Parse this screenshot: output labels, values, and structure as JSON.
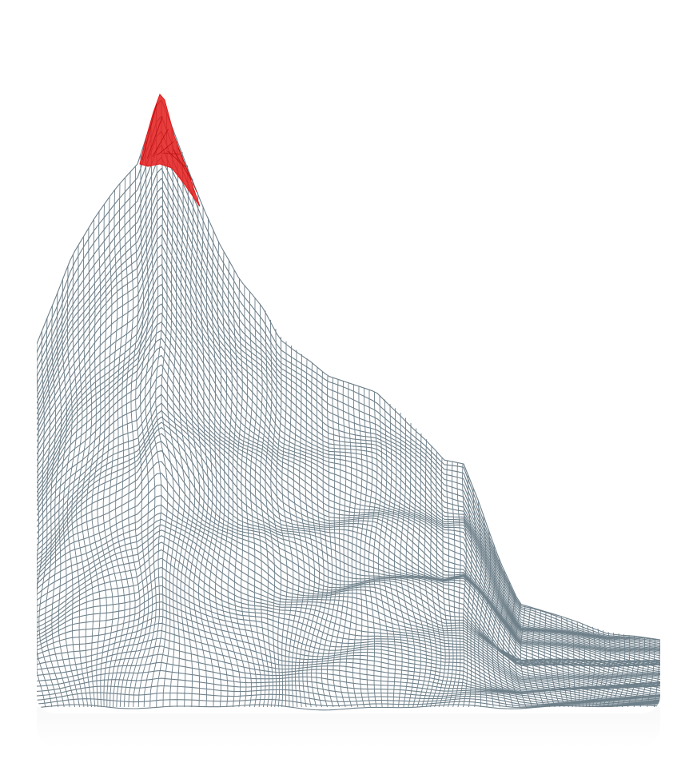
{
  "scene": {
    "subject": "terrain-wireframe",
    "colors": {
      "background": "#ffffff",
      "mesh": "#6f808a",
      "peak_highlight": "#e41b1b"
    }
  }
}
